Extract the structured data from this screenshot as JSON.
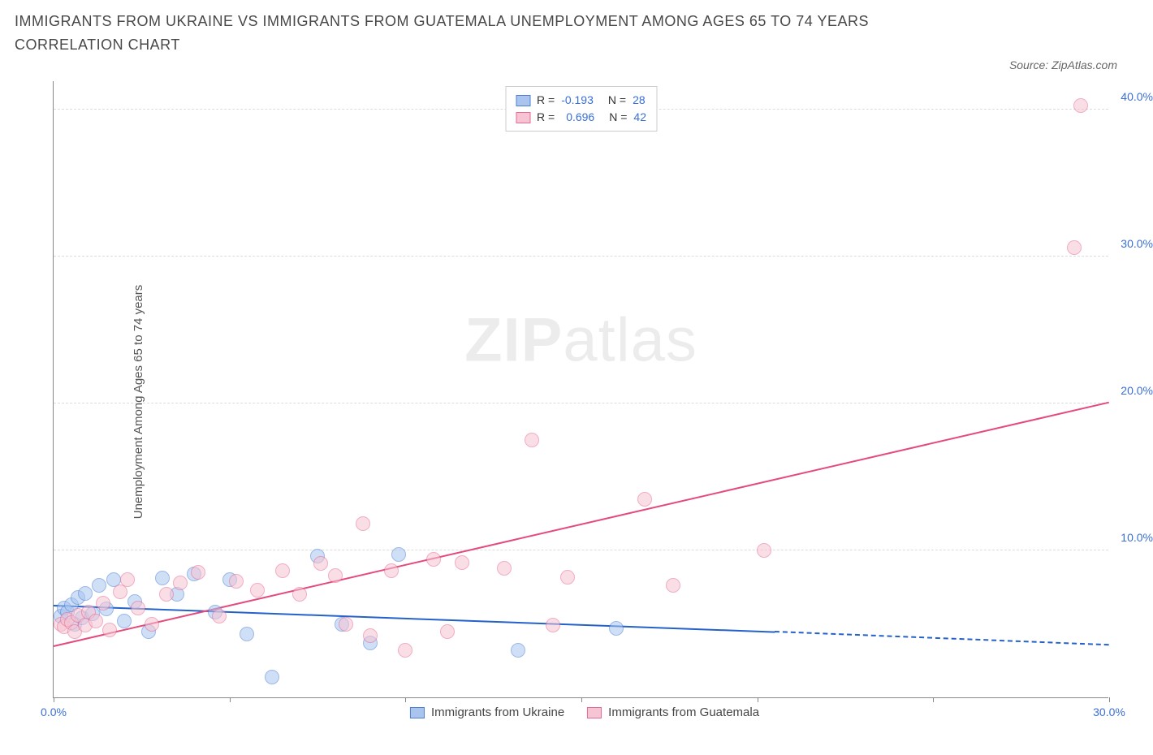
{
  "title": "IMMIGRANTS FROM UKRAINE VS IMMIGRANTS FROM GUATEMALA UNEMPLOYMENT AMONG AGES 65 TO 74 YEARS CORRELATION CHART",
  "source": "Source: ZipAtlas.com",
  "watermark_bold": "ZIP",
  "watermark_light": "atlas",
  "chart": {
    "type": "scatter",
    "y_axis_label": "Unemployment Among Ages 65 to 74 years",
    "background_color": "#ffffff",
    "grid_color": "#dcdcdc",
    "axis_color": "#888888",
    "xlim": [
      0,
      30
    ],
    "ylim": [
      0,
      42
    ],
    "xtick_values": [
      0,
      5,
      10,
      15,
      20,
      25,
      30
    ],
    "xtick_labels": [
      "0.0%",
      "",
      "",
      "",
      "",
      "",
      "30.0%"
    ],
    "ytick_values": [
      10,
      20,
      30,
      40
    ],
    "ytick_labels": [
      "10.0%",
      "20.0%",
      "30.0%",
      "40.0%"
    ],
    "tick_label_color": "#3b6fd6",
    "tick_label_fontsize": 14,
    "point_radius": 9,
    "point_opacity": 0.55,
    "series": [
      {
        "name": "Immigrants from Ukraine",
        "fill": "#a9c5ef",
        "stroke": "#4d7fd8",
        "line_color": "#2462c9",
        "r_value": "-0.193",
        "n_value": "28",
        "trend": {
          "x1": 0,
          "y1": 6.2,
          "x2": 20.5,
          "y2": 4.4,
          "dashed_to_x": 30,
          "dashed_to_y": 3.5
        },
        "points": [
          [
            0.2,
            5.5
          ],
          [
            0.3,
            6.1
          ],
          [
            0.4,
            5.8
          ],
          [
            0.5,
            6.3
          ],
          [
            0.6,
            5.0
          ],
          [
            0.7,
            6.8
          ],
          [
            0.8,
            5.4
          ],
          [
            0.9,
            7.1
          ],
          [
            1.1,
            5.7
          ],
          [
            1.3,
            7.6
          ],
          [
            1.5,
            6.0
          ],
          [
            1.7,
            8.0
          ],
          [
            2.0,
            5.2
          ],
          [
            2.3,
            6.5
          ],
          [
            2.7,
            4.5
          ],
          [
            3.1,
            8.1
          ],
          [
            3.5,
            7.0
          ],
          [
            4.0,
            8.4
          ],
          [
            4.6,
            5.8
          ],
          [
            5.0,
            8.0
          ],
          [
            5.5,
            4.3
          ],
          [
            6.2,
            1.4
          ],
          [
            7.5,
            9.6
          ],
          [
            8.2,
            5.0
          ],
          [
            9.0,
            3.7
          ],
          [
            9.8,
            9.7
          ],
          [
            13.2,
            3.2
          ],
          [
            16.0,
            4.7
          ]
        ]
      },
      {
        "name": "Immigrants from Guatemala",
        "fill": "#f6c4d2",
        "stroke": "#e76a94",
        "line_color": "#e44a7c",
        "r_value": "0.696",
        "n_value": "42",
        "trend": {
          "x1": 0,
          "y1": 3.4,
          "x2": 30,
          "y2": 20.0
        },
        "points": [
          [
            0.2,
            5.0
          ],
          [
            0.3,
            4.8
          ],
          [
            0.4,
            5.3
          ],
          [
            0.5,
            5.1
          ],
          [
            0.6,
            4.5
          ],
          [
            0.7,
            5.6
          ],
          [
            0.9,
            4.9
          ],
          [
            1.0,
            5.8
          ],
          [
            1.2,
            5.2
          ],
          [
            1.4,
            6.4
          ],
          [
            1.6,
            4.6
          ],
          [
            1.9,
            7.2
          ],
          [
            2.1,
            8.0
          ],
          [
            2.4,
            6.1
          ],
          [
            2.8,
            5.0
          ],
          [
            3.2,
            7.0
          ],
          [
            3.6,
            7.8
          ],
          [
            4.1,
            8.5
          ],
          [
            4.7,
            5.5
          ],
          [
            5.2,
            7.9
          ],
          [
            5.8,
            7.3
          ],
          [
            6.5,
            8.6
          ],
          [
            7.0,
            7.0
          ],
          [
            7.6,
            9.1
          ],
          [
            8.0,
            8.3
          ],
          [
            8.3,
            5.0
          ],
          [
            8.8,
            11.8
          ],
          [
            9.0,
            4.2
          ],
          [
            9.6,
            8.6
          ],
          [
            10.0,
            3.2
          ],
          [
            10.8,
            9.4
          ],
          [
            11.2,
            4.5
          ],
          [
            11.6,
            9.2
          ],
          [
            12.8,
            8.8
          ],
          [
            13.6,
            17.5
          ],
          [
            14.2,
            4.9
          ],
          [
            14.6,
            8.2
          ],
          [
            16.8,
            13.5
          ],
          [
            17.6,
            7.6
          ],
          [
            20.2,
            10.0
          ],
          [
            29.0,
            30.6
          ],
          [
            29.2,
            40.3
          ]
        ]
      }
    ],
    "legend_top_labels": {
      "r_prefix": "R =",
      "n_prefix": "N ="
    }
  }
}
